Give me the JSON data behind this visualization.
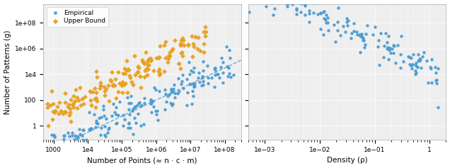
{
  "left_xlabel": "Number of Points (≈ n · c · m)",
  "left_ylabel": "Number of Patterns (g)",
  "right_xlabel": "Density (ρ)",
  "left_xlim": [
    500.0,
    300000000.0
  ],
  "left_ylim": [
    0.08,
    3000000000.0
  ],
  "right_xlim": [
    0.0005,
    2.0
  ],
  "right_ylim": [
    0.08,
    3000000000.0
  ],
  "empirical_color": "#4B9CD3",
  "upper_bound_color": "#E8A020",
  "dashed_line_color": "#4B9CD3",
  "legend_labels": [
    "Empirical",
    "Upper Bound"
  ],
  "seed": 42,
  "line_slope": 1.25,
  "line_intercept": -5.5
}
